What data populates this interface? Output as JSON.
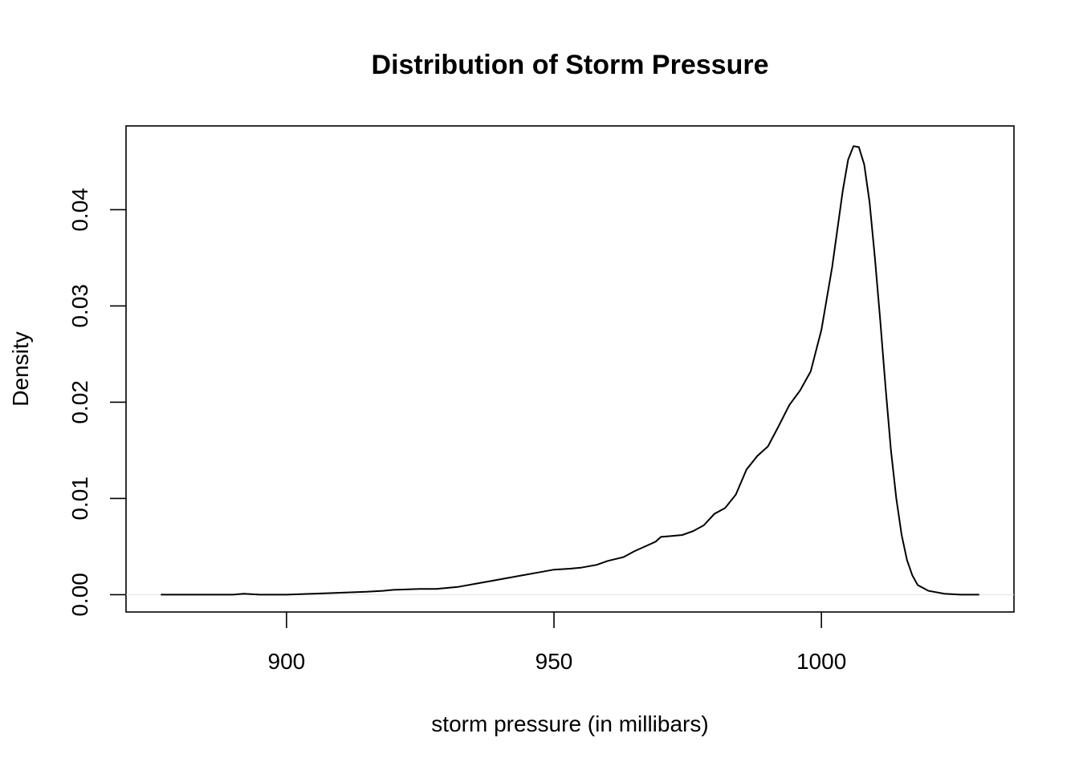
{
  "chart_data": {
    "type": "line",
    "title": "Distribution of Storm Pressure",
    "xlabel": "storm pressure (in millibars)",
    "ylabel": "Density",
    "xlim": [
      870,
      1036
    ],
    "ylim": [
      -0.0018,
      0.0487
    ],
    "xticks": [
      900,
      950,
      1000
    ],
    "yticks": [
      0.0,
      0.01,
      0.02,
      0.03,
      0.04
    ],
    "xtick_labels": [
      "900",
      "950",
      "1000"
    ],
    "ytick_labels": [
      "0.00",
      "0.01",
      "0.02",
      "0.03",
      "0.04"
    ],
    "grid": false,
    "zero_line": true,
    "series": [
      {
        "x": [
          876.5,
          880,
          885,
          890,
          892,
          895,
          900,
          905,
          910,
          915,
          918,
          920,
          925,
          928,
          932,
          936,
          938,
          941,
          944,
          947,
          950,
          953,
          955,
          958,
          960,
          963,
          965,
          967,
          969,
          970,
          972,
          974,
          976,
          978,
          980,
          982,
          984,
          986,
          988,
          990,
          992,
          994,
          996,
          998,
          1000,
          1002,
          1004,
          1005,
          1006,
          1007,
          1008,
          1009,
          1010,
          1011,
          1012,
          1013,
          1014,
          1015,
          1016,
          1017,
          1018,
          1020,
          1023,
          1026,
          1029.5
        ],
        "y": [
          0.0,
          0.0,
          0.0,
          0.0,
          0.0001,
          0.0,
          0.0,
          0.0001,
          0.0002,
          0.0003,
          0.0004,
          0.0005,
          0.0006,
          0.0006,
          0.0008,
          0.0012,
          0.0014,
          0.0017,
          0.002,
          0.0023,
          0.0026,
          0.0027,
          0.0028,
          0.0031,
          0.0035,
          0.0039,
          0.0045,
          0.005,
          0.0055,
          0.006,
          0.0061,
          0.0062,
          0.0066,
          0.0072,
          0.0084,
          0.009,
          0.0104,
          0.013,
          0.0144,
          0.0154,
          0.0175,
          0.0197,
          0.0212,
          0.0232,
          0.0275,
          0.034,
          0.042,
          0.0452,
          0.0466,
          0.0465,
          0.0447,
          0.0408,
          0.035,
          0.0285,
          0.0215,
          0.015,
          0.01,
          0.0062,
          0.0036,
          0.002,
          0.001,
          0.0004,
          0.0001,
          0.0,
          0.0
        ]
      }
    ]
  }
}
